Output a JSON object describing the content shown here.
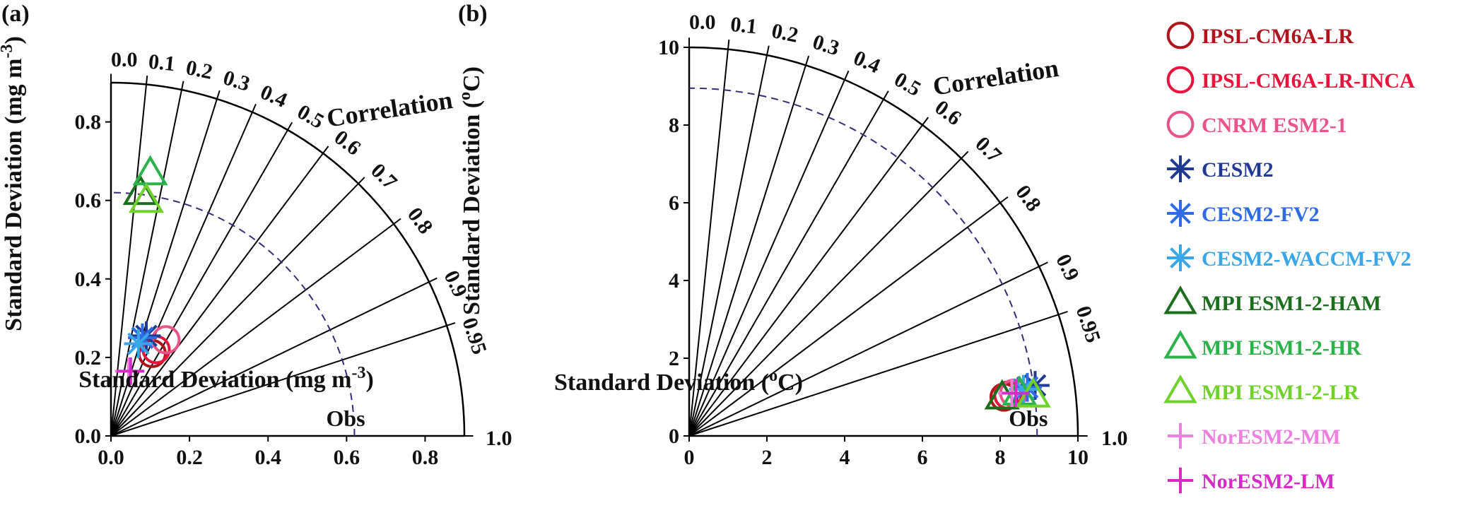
{
  "chart_data": [
    {
      "type": "scatter",
      "panel_label": "(a)",
      "xlabel": "Standard Deviation (mg m",
      "xlabel_sup": "-3",
      "xlabel_close": ")",
      "ylabel": "Standard Deviation (mg m",
      "ylabel_sup": "-3",
      "ylabel_close": ")",
      "angular_title": "Correlation",
      "obs_label": "Obs",
      "obs_std": 0.62,
      "rmax": 0.9,
      "xticks": [
        "0.0",
        "0.2",
        "0.4",
        "0.6",
        "0.8"
      ],
      "yticks": [
        "0.0",
        "0.2",
        "0.4",
        "0.6",
        "0.8"
      ],
      "tick_values": [
        0.0,
        0.2,
        0.4,
        0.6,
        0.8
      ],
      "corr_ticks": [
        "0.0",
        "0.1",
        "0.2",
        "0.3",
        "0.4",
        "0.5",
        "0.6",
        "0.7",
        "0.8",
        "0.9",
        "0.95",
        "1.0"
      ],
      "corr_values": [
        0.0,
        0.1,
        0.2,
        0.3,
        0.4,
        0.5,
        0.6,
        0.7,
        0.8,
        0.9,
        0.95,
        1.0
      ],
      "series": [
        {
          "name": "IPSL-CM6A-LR",
          "x": 0.105,
          "y": 0.21
        },
        {
          "name": "IPSL-CM6A-LR-INCA",
          "x": 0.115,
          "y": 0.22
        },
        {
          "name": "CNRM ESM2-1",
          "x": 0.14,
          "y": 0.245
        },
        {
          "name": "CESM2",
          "x": 0.09,
          "y": 0.255
        },
        {
          "name": "CESM2-FV2",
          "x": 0.08,
          "y": 0.25
        },
        {
          "name": "CESM2-WACCM-FV2",
          "x": 0.07,
          "y": 0.235
        },
        {
          "name": "MPI ESM1-2-HAM",
          "x": 0.075,
          "y": 0.62
        },
        {
          "name": "MPI ESM1-2-HR",
          "x": 0.1,
          "y": 0.67
        },
        {
          "name": "MPI ESM1-2-LR",
          "x": 0.09,
          "y": 0.6
        },
        {
          "name": "NorESM2-MM",
          "x": 0.045,
          "y": 0.165
        },
        {
          "name": "NorESM2-LM",
          "x": 0.05,
          "y": 0.165
        }
      ]
    },
    {
      "type": "scatter",
      "panel_label": "(b)",
      "xlabel": "Standard Deviation (",
      "xlabel_sup": "o",
      "xlabel_close": "C)",
      "ylabel": "Standard Deviation (",
      "ylabel_sup": "o",
      "ylabel_close": "C)",
      "angular_title": "Correlation",
      "obs_label": "Obs",
      "obs_std": 8.95,
      "rmax": 10,
      "xticks": [
        "0",
        "2",
        "4",
        "6",
        "8",
        "10"
      ],
      "yticks": [
        "0",
        "2",
        "4",
        "6",
        "8",
        "10"
      ],
      "tick_values": [
        0,
        2,
        4,
        6,
        8,
        10
      ],
      "corr_ticks": [
        "0.0",
        "0.1",
        "0.2",
        "0.3",
        "0.4",
        "0.5",
        "0.6",
        "0.7",
        "0.8",
        "0.9",
        "0.95",
        "1.0"
      ],
      "corr_values": [
        0.0,
        0.1,
        0.2,
        0.3,
        0.4,
        0.5,
        0.6,
        0.7,
        0.8,
        0.9,
        0.95,
        1.0
      ],
      "series": [
        {
          "name": "IPSL-CM6A-LR",
          "x": 8.1,
          "y": 1.0
        },
        {
          "name": "IPSL-CM6A-LR-INCA",
          "x": 8.2,
          "y": 1.05
        },
        {
          "name": "CNRM ESM2-1",
          "x": 8.35,
          "y": 1.1
        },
        {
          "name": "CESM2",
          "x": 8.9,
          "y": 1.3
        },
        {
          "name": "CESM2-FV2",
          "x": 8.7,
          "y": 1.25
        },
        {
          "name": "CESM2-WACCM-FV2",
          "x": 8.6,
          "y": 1.2
        },
        {
          "name": "MPI ESM1-2-HAM",
          "x": 8.05,
          "y": 1.0
        },
        {
          "name": "MPI ESM1-2-HR",
          "x": 8.5,
          "y": 1.1
        },
        {
          "name": "MPI ESM1-2-LR",
          "x": 8.85,
          "y": 1.05
        },
        {
          "name": "NorESM2-MM",
          "x": 8.3,
          "y": 1.1
        },
        {
          "name": "NorESM2-LM",
          "x": 8.4,
          "y": 1.1
        }
      ]
    }
  ],
  "legend": [
    {
      "name": "IPSL-CM6A-LR",
      "marker": "circle",
      "color": "#b0141b"
    },
    {
      "name": "IPSL-CM6A-LR-INCA",
      "marker": "circle",
      "color": "#e8143c"
    },
    {
      "name": "CNRM ESM2-1",
      "marker": "circle",
      "color": "#e8538a"
    },
    {
      "name": "CESM2",
      "marker": "asterisk",
      "color": "#1f3a93"
    },
    {
      "name": "CESM2-FV2",
      "marker": "asterisk",
      "color": "#2e6be6"
    },
    {
      "name": "CESM2-WACCM-FV2",
      "marker": "asterisk",
      "color": "#39a6e8"
    },
    {
      "name": "MPI ESM1-2-HAM",
      "marker": "triangle",
      "color": "#1b6e1b"
    },
    {
      "name": "MPI ESM1-2-HR",
      "marker": "triangle",
      "color": "#2bb34a"
    },
    {
      "name": "MPI ESM1-2-LR",
      "marker": "triangle",
      "color": "#6fd12b"
    },
    {
      "name": "NorESM2-MM",
      "marker": "plus",
      "color": "#ee7fe0"
    },
    {
      "name": "NorESM2-LM",
      "marker": "plus",
      "color": "#d62bc8"
    }
  ],
  "colors": {
    "obs_arc": "#3b2a7a",
    "axis": "#000000"
  }
}
